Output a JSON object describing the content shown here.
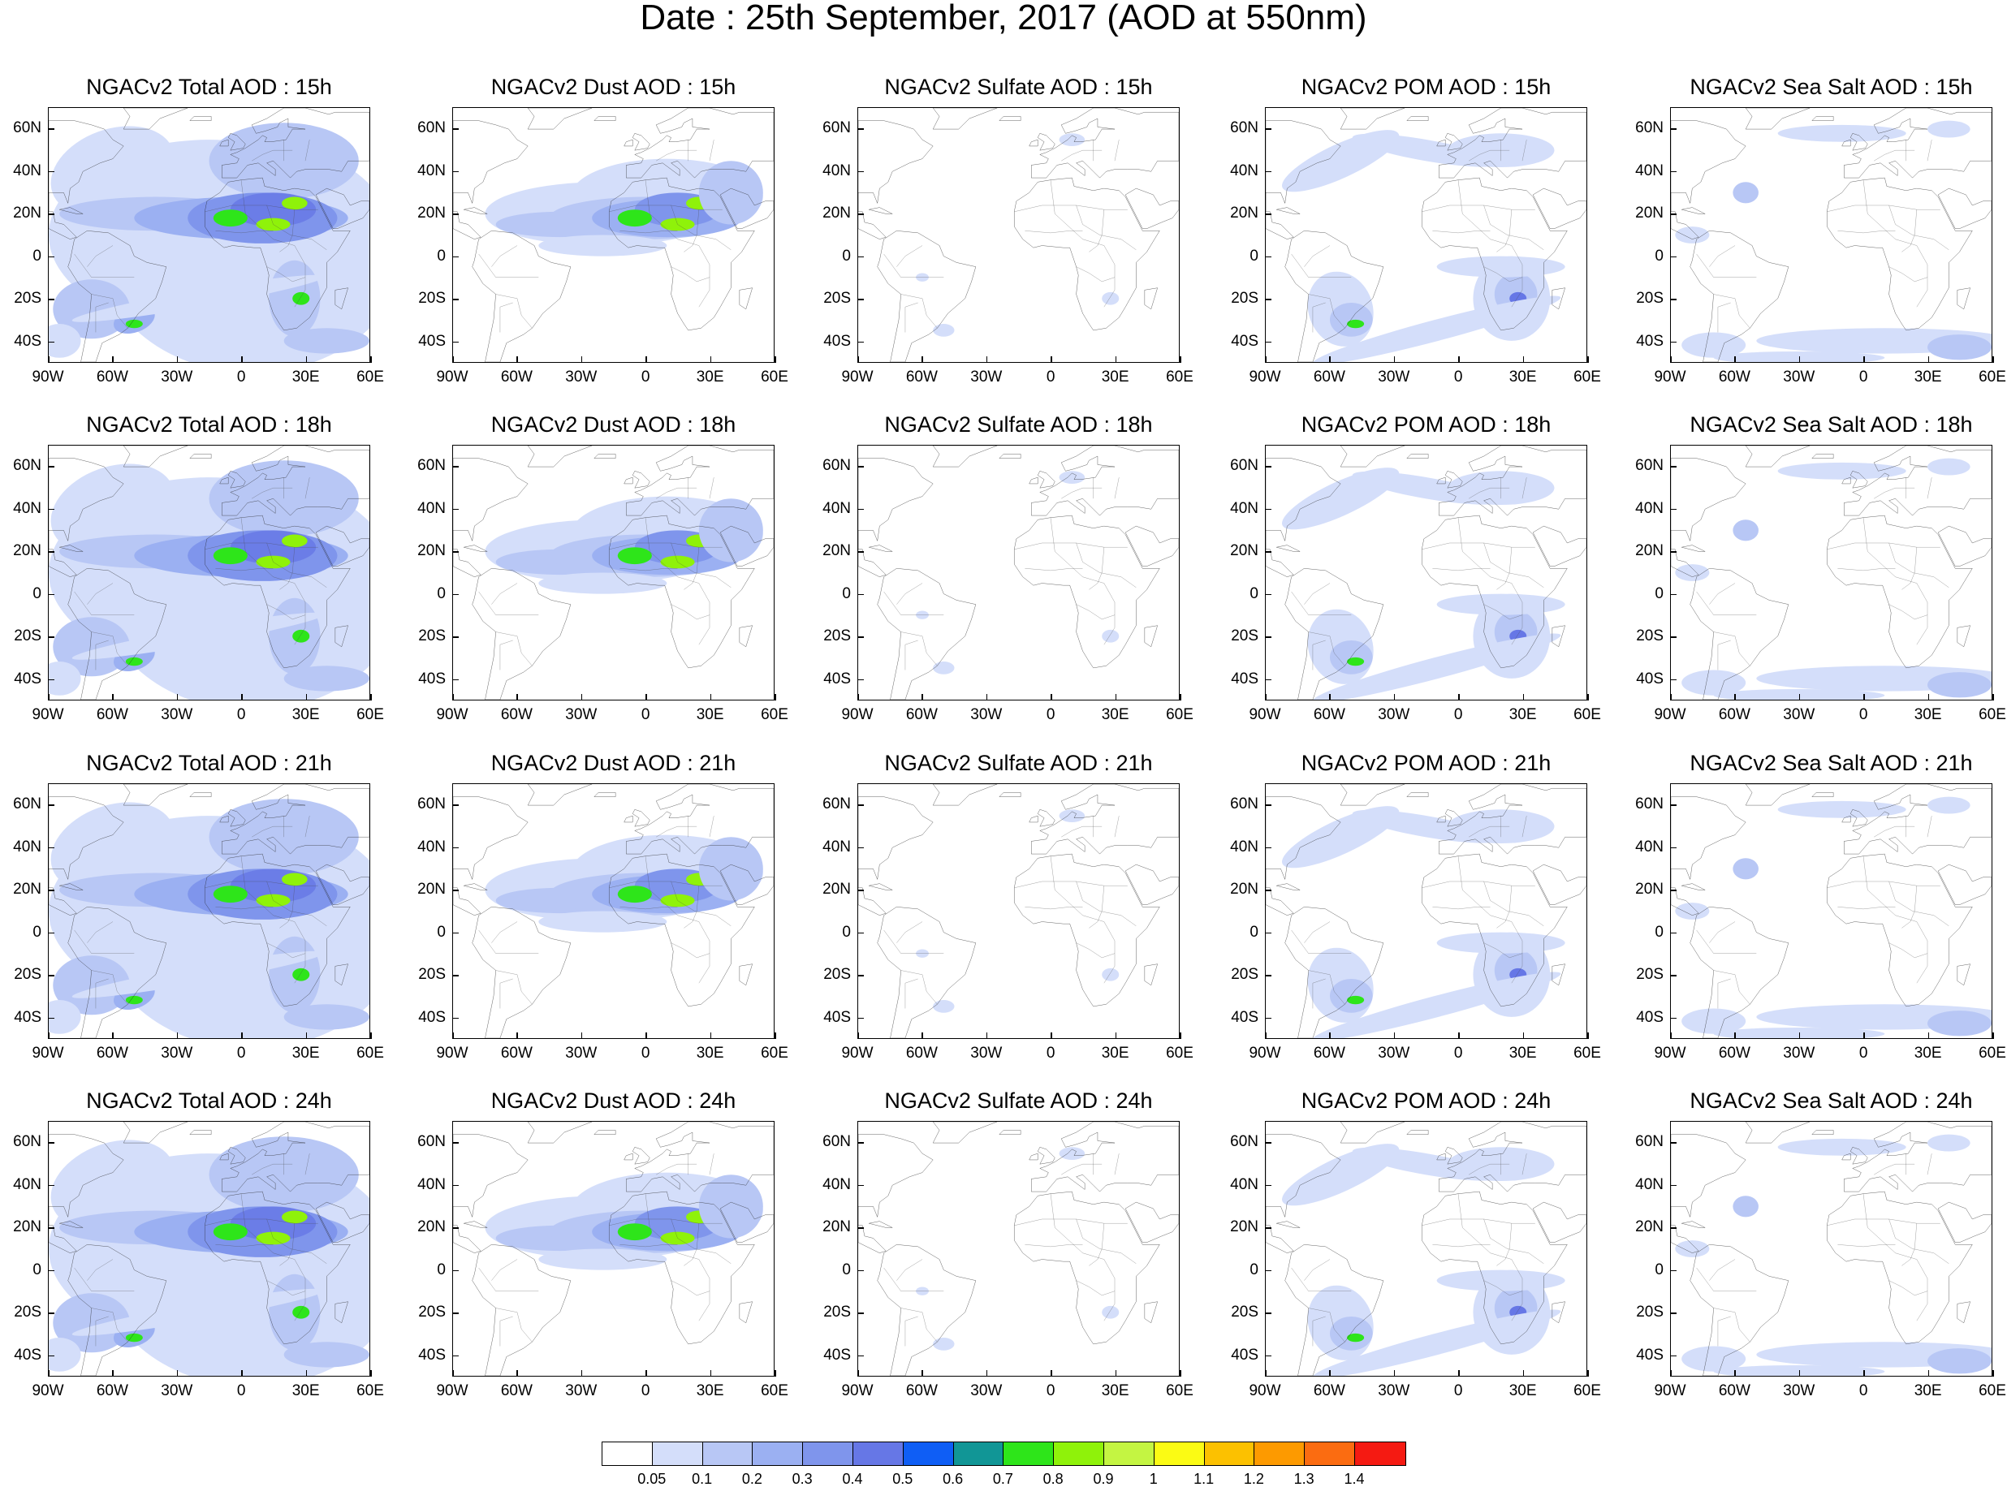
{
  "title": "Date : 25th September, 2017 (AOD at 550nm)",
  "panels": [
    [
      "NGACv2 Total AOD : 15h",
      "NGACv2 Dust AOD : 15h",
      "NGACv2 Sulfate AOD : 15h",
      "NGACv2 POM AOD : 15h",
      "NGACv2 Sea Salt AOD : 15h"
    ],
    [
      "NGACv2 Total AOD : 18h",
      "NGACv2 Dust AOD : 18h",
      "NGACv2 Sulfate AOD : 18h",
      "NGACv2 POM AOD : 18h",
      "NGACv2 Sea Salt AOD : 18h"
    ],
    [
      "NGACv2 Total AOD : 21h",
      "NGACv2 Dust AOD : 21h",
      "NGACv2 Sulfate AOD : 21h",
      "NGACv2 POM AOD : 21h",
      "NGACv2 Sea Salt AOD : 21h"
    ],
    [
      "NGACv2 Total AOD : 24h",
      "NGACv2 Dust AOD : 24h",
      "NGACv2 Sulfate AOD : 24h",
      "NGACv2 POM AOD : 24h",
      "NGACv2 Sea Salt  AOD : 24h"
    ]
  ],
  "lat_labels": [
    "60N",
    "40N",
    "20N",
    "0",
    "20S",
    "40S"
  ],
  "lon_labels": [
    "90W",
    "60W",
    "30W",
    "0",
    "30E",
    "60E"
  ],
  "colorbar": {
    "labels": [
      "0.05",
      "0.1",
      "0.2",
      "0.3",
      "0.4",
      "0.5",
      "0.6",
      "0.7",
      "0.8",
      "0.9",
      "1",
      "1.1",
      "1.2",
      "1.3",
      "1.4"
    ],
    "colors": [
      "#ffffff",
      "#d4defa",
      "#b8c7f5",
      "#9bb0f2",
      "#7f95ec",
      "#6677e6",
      "#0f5ef5",
      "#119696",
      "#2ee51a",
      "#8ff20a",
      "#c4f542",
      "#fbfb14",
      "#fcc100",
      "#fd9a00",
      "#fb6c11",
      "#f51a12"
    ]
  },
  "aerosol_types": [
    "total",
    "dust",
    "sulfate",
    "pom",
    "seasalt"
  ]
}
